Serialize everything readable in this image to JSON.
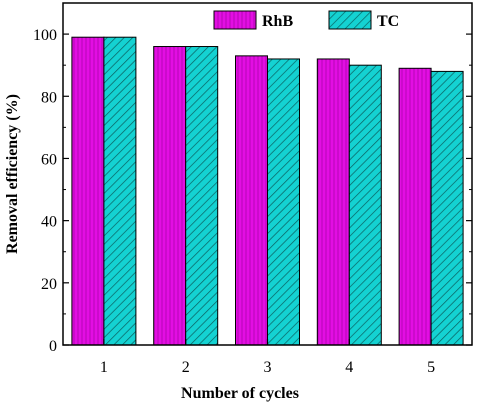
{
  "chart_data": {
    "type": "bar",
    "xlabel": "Number of cycles",
    "ylabel": "Removal efficiency (%)",
    "categories": [
      "1",
      "2",
      "3",
      "4",
      "5"
    ],
    "ylim": [
      0,
      110
    ],
    "yticks": [
      0,
      20,
      40,
      60,
      80,
      100
    ],
    "grid": false,
    "legend_position": "top-right",
    "series": [
      {
        "name": "RhB",
        "values": [
          99,
          96,
          93,
          92,
          89
        ],
        "color": "#e30ee3",
        "pattern": "vertical-lines"
      },
      {
        "name": "TC",
        "values": [
          99,
          96,
          92,
          90,
          88
        ],
        "color": "#14d2d2",
        "pattern": "diagonal-lines"
      }
    ]
  }
}
